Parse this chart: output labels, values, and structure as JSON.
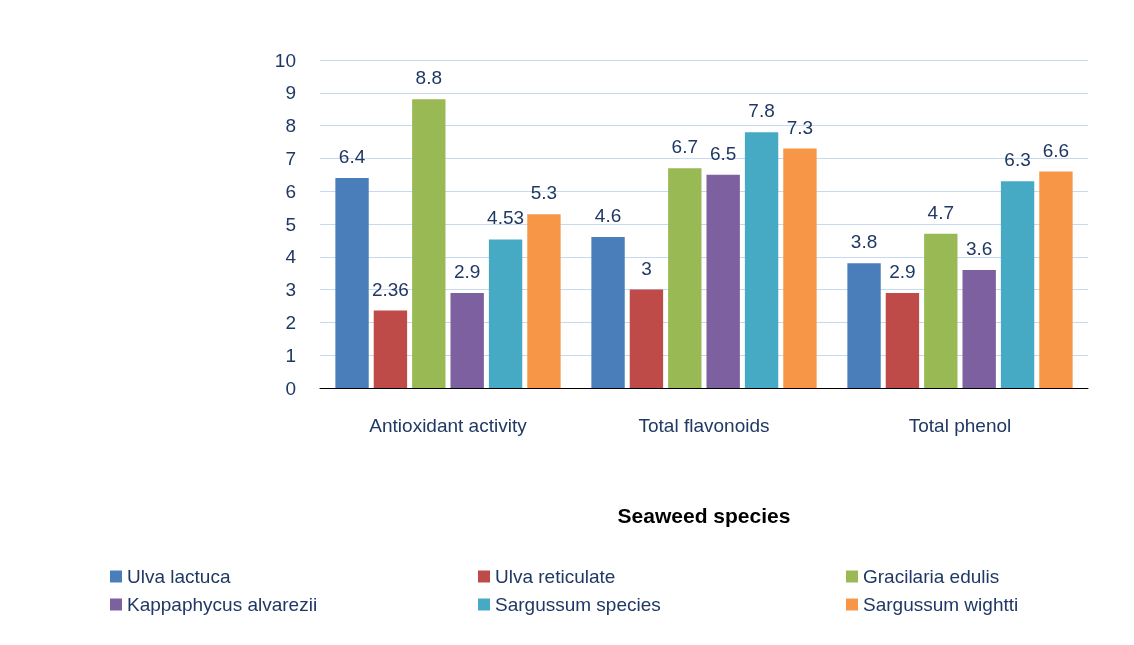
{
  "chart_data": {
    "type": "bar",
    "xlabel": "Seaweed species",
    "categories": [
      "Antioxidant activity",
      "Total flavonoids",
      "Total phenol"
    ],
    "series": [
      {
        "name": "Ulva lactuca",
        "color": "#4a7ebb",
        "values": [
          6.4,
          4.6,
          3.8
        ]
      },
      {
        "name": "Ulva reticulate",
        "color": "#be4b48",
        "values": [
          2.36,
          3,
          2.9
        ]
      },
      {
        "name": "Gracilaria edulis",
        "color": "#98b954",
        "values": [
          8.8,
          6.7,
          4.7
        ]
      },
      {
        "name": "Kappaphycus alvarezii",
        "color": "#7d60a0",
        "values": [
          2.9,
          6.5,
          3.6
        ]
      },
      {
        "name": "Sargussum species",
        "color": "#46aac5",
        "values": [
          4.53,
          7.8,
          6.3
        ]
      },
      {
        "name": "Sargussum wightti",
        "color": "#f79646",
        "values": [
          5.3,
          7.3,
          6.6
        ]
      }
    ],
    "ylim": [
      0,
      10
    ],
    "yticks": [
      0,
      1,
      2,
      3,
      4,
      5,
      6,
      7,
      8,
      9,
      10
    ],
    "grid": "y",
    "legend": "bottom",
    "data_labels": true
  }
}
